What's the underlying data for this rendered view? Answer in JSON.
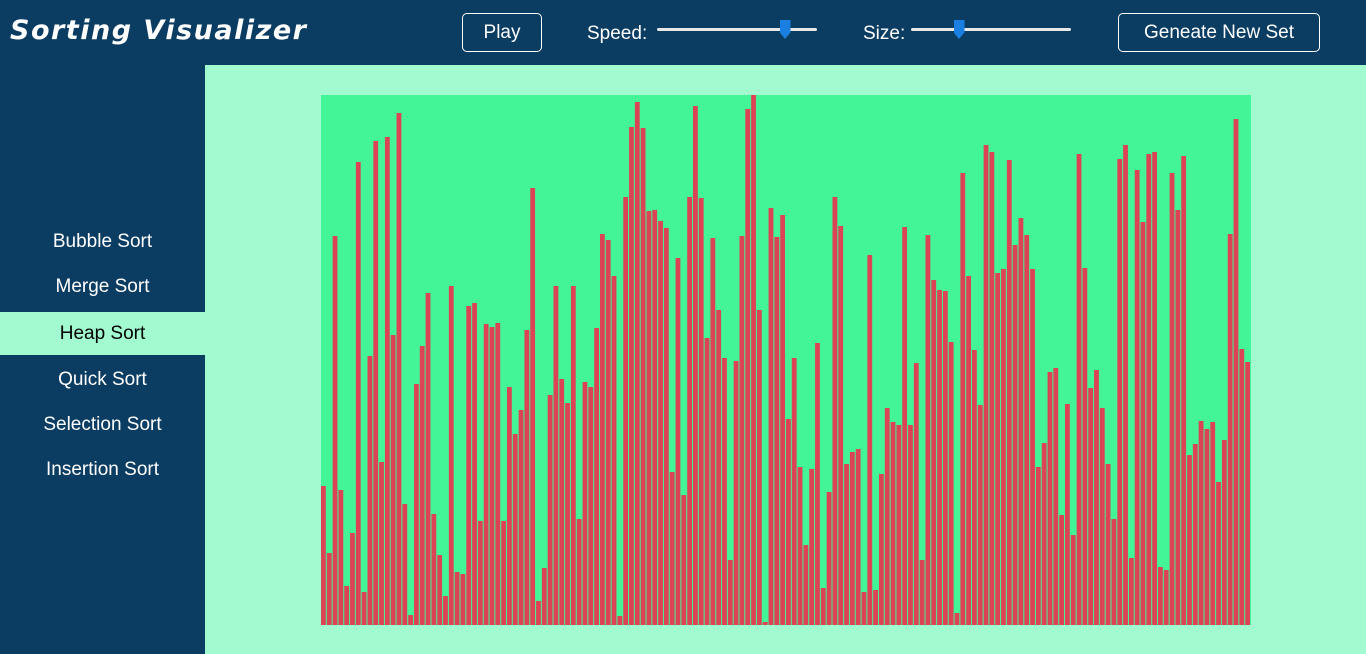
{
  "header": {
    "title": "Sorting Visualizer",
    "play_label": "Play",
    "speed_label": "Speed:",
    "size_label": "Size:",
    "new_set_label": "Geneate New Set"
  },
  "controls": {
    "speed_value": 0.8,
    "size_value": 0.3
  },
  "sidebar": {
    "items": [
      {
        "label": "Bubble Sort"
      },
      {
        "label": "Merge Sort"
      },
      {
        "label": "Heap Sort",
        "active": true
      },
      {
        "label": "Quick Sort"
      },
      {
        "label": "Selection Sort"
      },
      {
        "label": "Insertion Sort"
      }
    ]
  },
  "colors": {
    "header_bg": "#0b3c62",
    "page_bg": "#a1fad0",
    "chart_bg": "#43f596",
    "bar_color": "#dc4456",
    "active_nav_bg": "#a1fad0"
  },
  "chart_data": {
    "type": "bar",
    "max": 530,
    "values": [
      139,
      72,
      389,
      135,
      39,
      92,
      463,
      33,
      269,
      484,
      163,
      488,
      290,
      512,
      121,
      10,
      241,
      279,
      332,
      111,
      70,
      29,
      339,
      53,
      51,
      319,
      322,
      104,
      301,
      298,
      302,
      104,
      238,
      191,
      215,
      295,
      437,
      24,
      57,
      230,
      339,
      246,
      222,
      339,
      106,
      243,
      238,
      297,
      391,
      385,
      349,
      9,
      428,
      498,
      523,
      497,
      414,
      415,
      404,
      397,
      153,
      367,
      130,
      428,
      519,
      427,
      287,
      387,
      315,
      267,
      65,
      264,
      389,
      516,
      530,
      315,
      3,
      417,
      388,
      410,
      206,
      267,
      158,
      80,
      156,
      282,
      37,
      133,
      428,
      399,
      161,
      173,
      176,
      33,
      370,
      35,
      151,
      217,
      203,
      200,
      398,
      200,
      262,
      65,
      390,
      345,
      335,
      334,
      283,
      12,
      452,
      349,
      275,
      220,
      480,
      473,
      352,
      356,
      465,
      380,
      407,
      390,
      356,
      158,
      182,
      253,
      257,
      110,
      221,
      90,
      471,
      357,
      237,
      255,
      217,
      161,
      106,
      466,
      480,
      67,
      455,
      403,
      471,
      473,
      58,
      55,
      452,
      415,
      469,
      170,
      181,
      204,
      196,
      203,
      143,
      185,
      391,
      506,
      276,
      263
    ]
  }
}
